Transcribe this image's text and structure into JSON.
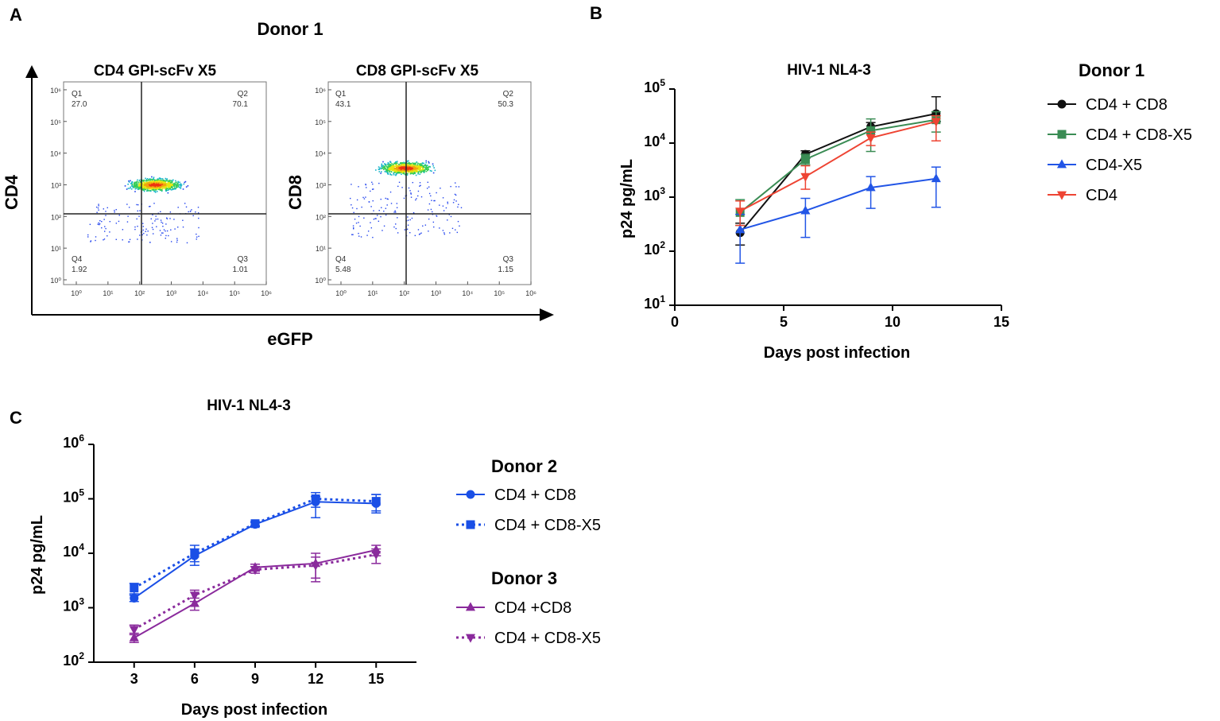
{
  "panels": {
    "a": {
      "letter": "A"
    },
    "b": {
      "letter": "B"
    },
    "c": {
      "letter": "C"
    }
  },
  "flow": {
    "donor_title": "Donor 1",
    "y_axis_left": "CD4",
    "y_axis_right": "CD8",
    "x_axis": "eGFP",
    "tick_labels": [
      "10⁰",
      "10¹",
      "10²",
      "10³",
      "10⁴",
      "10⁵",
      "10⁶"
    ],
    "plots": [
      {
        "title": "CD4 GPI-scFv X5",
        "quadrants": [
          {
            "name": "Q1",
            "value": "27.0"
          },
          {
            "name": "Q2",
            "value": "70.1"
          },
          {
            "name": "Q3",
            "value": "1.01"
          },
          {
            "name": "Q4",
            "value": "1.92"
          }
        ]
      },
      {
        "title": "CD8 GPI-scFv X5",
        "quadrants": [
          {
            "name": "Q1",
            "value": "43.1"
          },
          {
            "name": "Q2",
            "value": "50.3"
          },
          {
            "name": "Q3",
            "value": "1.15"
          },
          {
            "name": "Q4",
            "value": "5.48"
          }
        ]
      }
    ]
  },
  "chart_data": [
    {
      "type": "line",
      "panel": "B",
      "title": "HIV-1 NL4-3",
      "xlabel": "Days post infection",
      "ylabel": "p24 pg/mL",
      "yscale": "log",
      "xlim": [
        0,
        15
      ],
      "ylim": [
        10,
        100000
      ],
      "xticks": [
        0,
        5,
        10,
        15
      ],
      "yticks_exp": [
        1,
        2,
        3,
        4,
        5
      ],
      "legend_title": "Donor 1",
      "legend_position": "right",
      "x": [
        3,
        6,
        9,
        12
      ],
      "series": [
        {
          "name": "CD4 + CD8",
          "color": "#111111",
          "marker": "circle",
          "dash": "solid",
          "values": [
            220,
            6200,
            20000,
            35000
          ],
          "err_low": [
            130,
            5200,
            16000,
            25000
          ],
          "err_high": [
            330,
            7200,
            24000,
            72000
          ]
        },
        {
          "name": "CD4 + CD8-X5",
          "color": "#3a8c54",
          "marker": "square",
          "dash": "solid",
          "values": [
            520,
            5000,
            17000,
            27000
          ],
          "err_low": [
            300,
            4000,
            7000,
            16000
          ],
          "err_high": [
            900,
            6200,
            28000,
            38000
          ]
        },
        {
          "name": "CD4-X5",
          "color": "#2255e6",
          "marker": "triangle",
          "dash": "solid",
          "values": [
            250,
            560,
            1500,
            2200
          ],
          "err_low": [
            60,
            180,
            620,
            650
          ],
          "err_high": [
            480,
            950,
            2400,
            3600
          ]
        },
        {
          "name": "CD4",
          "color": "#ee4433",
          "marker": "triangle-down",
          "dash": "solid",
          "values": [
            550,
            2400,
            12500,
            25000
          ],
          "err_low": [
            300,
            1400,
            9000,
            11000
          ],
          "err_high": [
            850,
            3800,
            16000,
            32000
          ]
        }
      ]
    },
    {
      "type": "line",
      "panel": "C",
      "title": "HIV-1 NL4-3",
      "xlabel": "Days post infection",
      "ylabel": "p24 pg/mL",
      "yscale": "log",
      "xlim": [
        1,
        17
      ],
      "ylim": [
        100,
        1000000
      ],
      "xticks": [
        3,
        6,
        9,
        12,
        15
      ],
      "yticks_exp": [
        2,
        3,
        4,
        5,
        6
      ],
      "legend_position": "right",
      "groups": [
        {
          "title": "Donor 2",
          "series_index": [
            0,
            1
          ]
        },
        {
          "title": "Donor 3",
          "series_index": [
            2,
            3
          ]
        }
      ],
      "x": [
        3,
        6,
        9,
        12,
        15
      ],
      "series": [
        {
          "name": "CD4 + CD8",
          "color": "#1a4fe6",
          "marker": "circle",
          "dash": "solid",
          "values": [
            1500,
            9000,
            34000,
            88000,
            82000
          ],
          "err_low": [
            1300,
            7000,
            31000,
            45000,
            55000
          ],
          "err_high": [
            1700,
            12000,
            37000,
            110000,
            120000
          ]
        },
        {
          "name": "CD4 + CD8-X5",
          "color": "#1a4fe6",
          "marker": "square",
          "dash": "dotted",
          "values": [
            2300,
            10000,
            35000,
            100000,
            90000
          ],
          "err_low": [
            1800,
            6000,
            32000,
            70000,
            60000
          ],
          "err_high": [
            2800,
            14000,
            38000,
            130000,
            120000
          ]
        },
        {
          "name": "CD4 +CD8",
          "color": "#8a2a9c",
          "marker": "triangle",
          "dash": "solid",
          "values": [
            280,
            1200,
            5500,
            6500,
            11500
          ],
          "err_low": [
            230,
            900,
            4700,
            3000,
            9000
          ],
          "err_high": [
            340,
            1500,
            6300,
            10000,
            14000
          ]
        },
        {
          "name": "CD4 + CD8-X5",
          "color": "#8a2a9c",
          "marker": "triangle-down",
          "dash": "dotted",
          "values": [
            400,
            1700,
            5000,
            6000,
            9500
          ],
          "err_low": [
            320,
            1300,
            4300,
            3500,
            6500
          ],
          "err_high": [
            480,
            2100,
            5700,
            8500,
            12000
          ]
        }
      ]
    }
  ]
}
